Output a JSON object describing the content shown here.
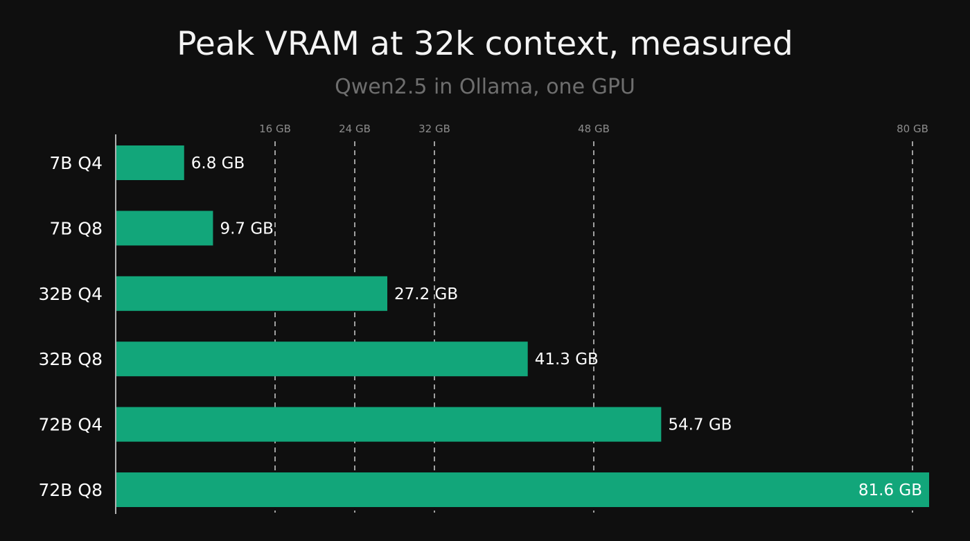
{
  "title": "Peak VRAM at 32k context, measured",
  "subtitle": "Qwen2.5 in Ollama, one GPU",
  "colors": {
    "background": "#0f0f0f",
    "bar": "#12a67a",
    "gridline": "#d0d0d0",
    "tick_text": "#8c8c8c",
    "subtitle_text": "#6e6e6e"
  },
  "chart_data": {
    "type": "bar",
    "orientation": "horizontal",
    "title": "Peak VRAM at 32k context, measured",
    "subtitle": "Qwen2.5 in Ollama, one GPU",
    "categories": [
      "7B Q4",
      "7B Q8",
      "32B Q4",
      "32B Q8",
      "72B Q4",
      "72B Q8"
    ],
    "values": [
      6.8,
      9.7,
      27.2,
      41.3,
      54.7,
      81.6
    ],
    "value_labels": [
      "6.8 GB",
      "9.7 GB",
      "27.2 GB",
      "41.3 GB",
      "54.7 GB",
      "81.6 GB"
    ],
    "unit": "GB",
    "xlim": [
      0,
      81.6
    ],
    "ticks": [
      16,
      24,
      32,
      48,
      80
    ],
    "tick_labels": [
      "16 GB",
      "24 GB",
      "32 GB",
      "48 GB",
      "80 GB"
    ],
    "gridlines": "dashed vertical at ticks",
    "legend": "none"
  }
}
